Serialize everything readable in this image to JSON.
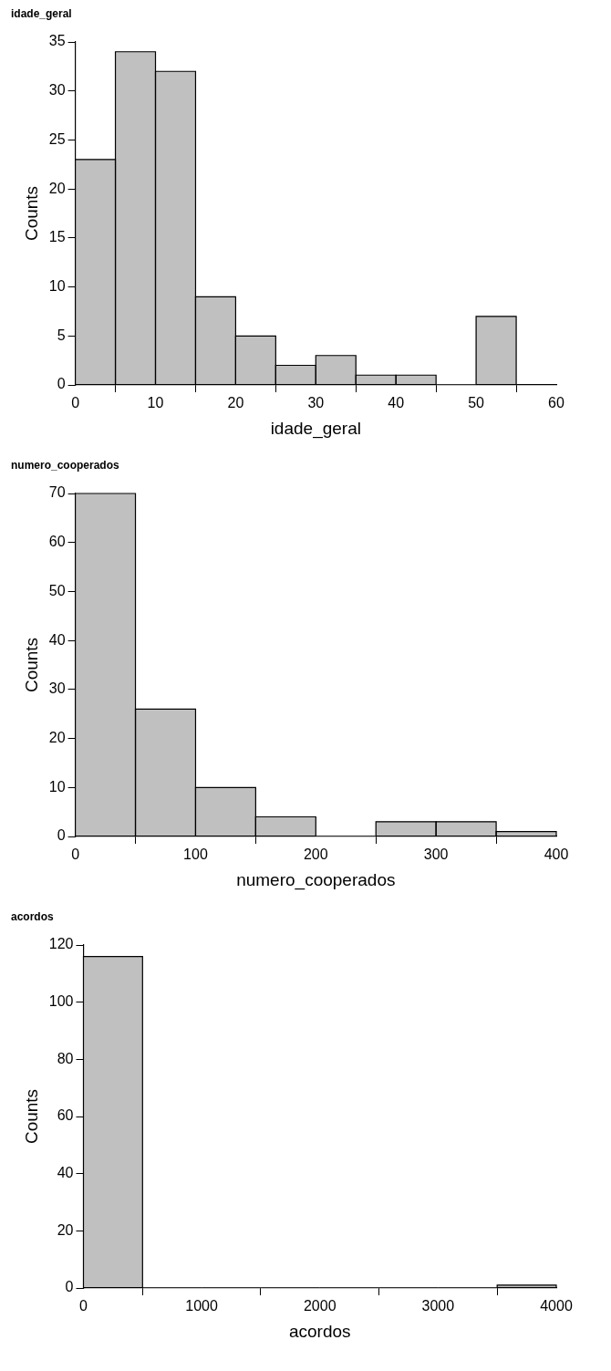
{
  "chart_data": [
    {
      "type": "histogram",
      "title": "idade_geral",
      "xlabel": "idade_geral",
      "ylabel": "Counts",
      "color": "#c0c0c0",
      "bins": [
        0,
        5,
        10,
        15,
        20,
        25,
        30,
        35,
        40,
        45,
        50,
        55
      ],
      "values": [
        23,
        34,
        32,
        9,
        5,
        2,
        3,
        1,
        1,
        0,
        7
      ],
      "xlim": [
        0,
        60
      ],
      "xticks": [
        0,
        10,
        20,
        30,
        40,
        50,
        60
      ],
      "ylim": [
        0,
        35
      ],
      "yticks": [
        0,
        5,
        10,
        15,
        20,
        25,
        30,
        35
      ]
    },
    {
      "type": "histogram",
      "title": "numero_cooperados",
      "xlabel": "numero_cooperados",
      "ylabel": "Counts",
      "color": "#c0c0c0",
      "bins": [
        0,
        50,
        100,
        150,
        200,
        250,
        300,
        350,
        400
      ],
      "values": [
        70,
        26,
        10,
        4,
        0,
        3,
        3,
        1
      ],
      "xlim": [
        0,
        400
      ],
      "xticks": [
        0,
        100,
        200,
        300,
        400
      ],
      "ylim": [
        0,
        70
      ],
      "yticks": [
        0,
        10,
        20,
        30,
        40,
        50,
        60,
        70
      ]
    },
    {
      "type": "histogram",
      "title": "acordos",
      "xlabel": "acordos",
      "ylabel": "Counts",
      "color": "#c0c0c0",
      "bins": [
        0,
        500,
        1000,
        1500,
        2000,
        2500,
        3000,
        3500,
        4000
      ],
      "values": [
        116,
        0,
        0,
        0,
        0,
        0,
        0,
        1
      ],
      "xlim": [
        0,
        4000
      ],
      "xticks": [
        0,
        1000,
        2000,
        3000,
        4000
      ],
      "ylim": [
        0,
        120
      ],
      "yticks": [
        0,
        20,
        40,
        60,
        80,
        100,
        120
      ]
    }
  ]
}
